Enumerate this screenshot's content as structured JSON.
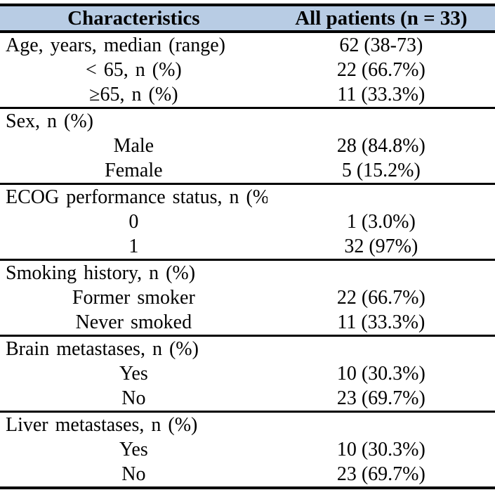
{
  "colors": {
    "header_bg": "#b8cce4",
    "border": "#000000",
    "text": "#000000"
  },
  "table": {
    "columns": [
      "Characteristics",
      "All patients (n = 33)"
    ],
    "sections": [
      {
        "rows": [
          {
            "label": "Age, years, median (range)",
            "value": "62 (38-73)",
            "indent": false
          },
          {
            "label": "< 65, n (%)",
            "value": "22 (66.7%)",
            "indent": true
          },
          {
            "label": "≥65, n (%)",
            "value": "11 (33.3%)",
            "indent": true
          }
        ]
      },
      {
        "rows": [
          {
            "label": "Sex, n (%)",
            "value": "",
            "indent": false
          },
          {
            "label": "Male",
            "value": "28 (84.8%)",
            "indent": true
          },
          {
            "label": "Female",
            "value": "5 (15.2%)",
            "indent": true
          }
        ]
      },
      {
        "rows": [
          {
            "label": "ECOG performance status, n (%)",
            "value": "",
            "indent": false
          },
          {
            "label": "0",
            "value": "1 (3.0%)",
            "indent": true
          },
          {
            "label": "1",
            "value": "32 (97%)",
            "indent": true
          }
        ]
      },
      {
        "rows": [
          {
            "label": "Smoking history, n (%)",
            "value": "",
            "indent": false
          },
          {
            "label": "Former smoker",
            "value": "22 (66.7%)",
            "indent": true
          },
          {
            "label": "Never smoked",
            "value": "11 (33.3%)",
            "indent": true
          }
        ]
      },
      {
        "rows": [
          {
            "label": "Brain metastases, n (%)",
            "value": "",
            "indent": false
          },
          {
            "label": "Yes",
            "value": "10 (30.3%)",
            "indent": true
          },
          {
            "label": "No",
            "value": "23 (69.7%)",
            "indent": true
          }
        ]
      },
      {
        "rows": [
          {
            "label": "Liver metastases, n (%)",
            "value": "",
            "indent": false
          },
          {
            "label": "Yes",
            "value": "10 (30.3%)",
            "indent": true
          },
          {
            "label": "No",
            "value": "23 (69.7%)",
            "indent": true
          }
        ]
      }
    ]
  }
}
